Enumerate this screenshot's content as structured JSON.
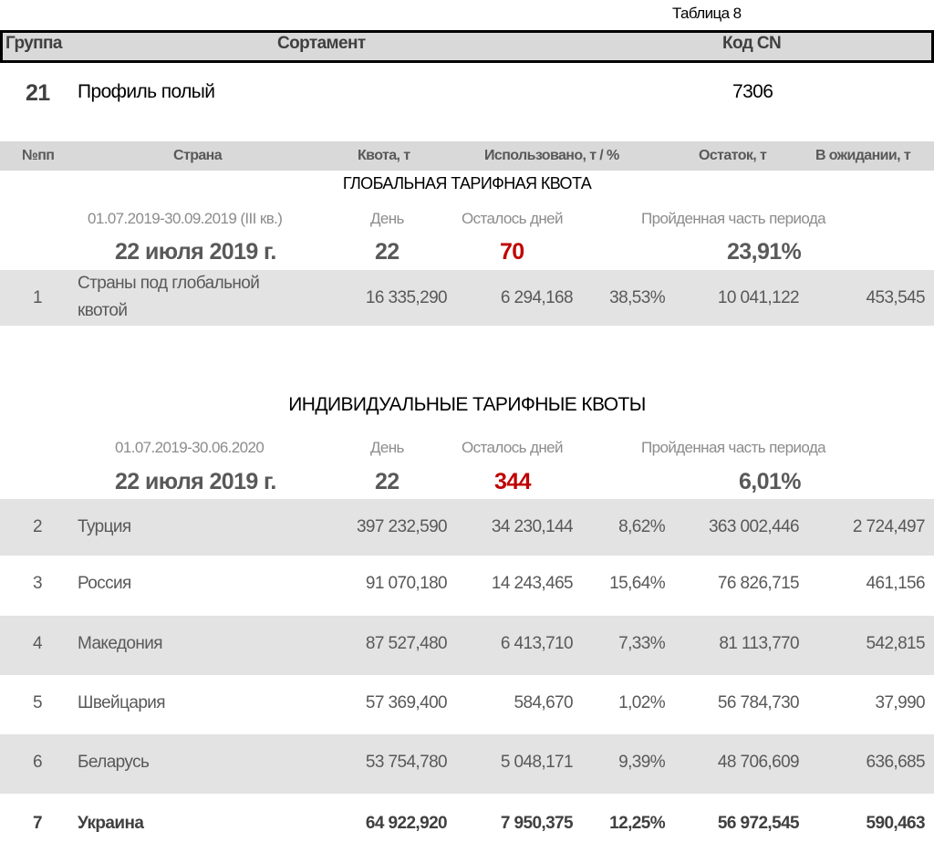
{
  "table_label": "Таблица 8",
  "header": {
    "group": "Группа",
    "assortment": "Сортамент",
    "cn_code": "Код CN"
  },
  "product": {
    "group": "21",
    "name": "Профиль полый",
    "cn_code": "7306"
  },
  "columns": [
    "№пп",
    "Страна",
    "Квота, т",
    "Использовано, т / %",
    "Остаток, т",
    "В ожидании, т"
  ],
  "global": {
    "title": "ГЛОБАЛЬНАЯ ТАРИФНАЯ КВОТА",
    "period": "01.07.2019-30.09.2019 (III кв.)",
    "day_label": "День",
    "days_left_label": "Осталось дней",
    "passed_label": "Пройденная часть периода",
    "date": "22 июля 2019 г.",
    "day": "22",
    "days_left": "70",
    "passed": "23,91%",
    "rows": [
      {
        "n": "1",
        "country_line1": "Страны под глобальной",
        "country_line2": "квотой",
        "quota": "16 335,290",
        "used": "6 294,168",
        "pct": "38,53%",
        "rest": "10 041,122",
        "pending": "453,545"
      }
    ]
  },
  "individual": {
    "title": "ИНДИВИДУАЛЬНЫЕ ТАРИФНЫЕ КВОТЫ",
    "period": "01.07.2019-30.06.2020",
    "day_label": "День",
    "days_left_label": "Осталось дней",
    "passed_label": "Пройденная часть периода",
    "date": "22 июля 2019 г.",
    "day": "22",
    "days_left": "344",
    "passed": "6,01%",
    "rows": [
      {
        "n": "2",
        "country": "Турция",
        "quota": "397 232,590",
        "used": "34 230,144",
        "pct": "8,62%",
        "rest": "363 002,446",
        "pending": "2 724,497"
      },
      {
        "n": "3",
        "country": "Россия",
        "quota": "91 070,180",
        "used": "14 243,465",
        "pct": "15,64%",
        "rest": "76 826,715",
        "pending": "461,156"
      },
      {
        "n": "4",
        "country": "Македония",
        "quota": "87 527,480",
        "used": "6 413,710",
        "pct": "7,33%",
        "rest": "81 113,770",
        "pending": "542,815"
      },
      {
        "n": "5",
        "country": "Швейцария",
        "quota": "57 369,400",
        "used": "584,670",
        "pct": "1,02%",
        "rest": "56 784,730",
        "pending": "37,990"
      },
      {
        "n": "6",
        "country": "Беларусь",
        "quota": "53 754,780",
        "used": "5 048,171",
        "pct": "9,39%",
        "rest": "48 706,609",
        "pending": "636,685"
      },
      {
        "n": "7",
        "country": "Украина",
        "quota": "64 922,920",
        "used": "7 950,375",
        "pct": "12,25%",
        "rest": "56 972,545",
        "pending": "590,463"
      }
    ]
  },
  "colors": {
    "highlight_red": "#c00000",
    "band_grey": "#e3e3e3"
  }
}
